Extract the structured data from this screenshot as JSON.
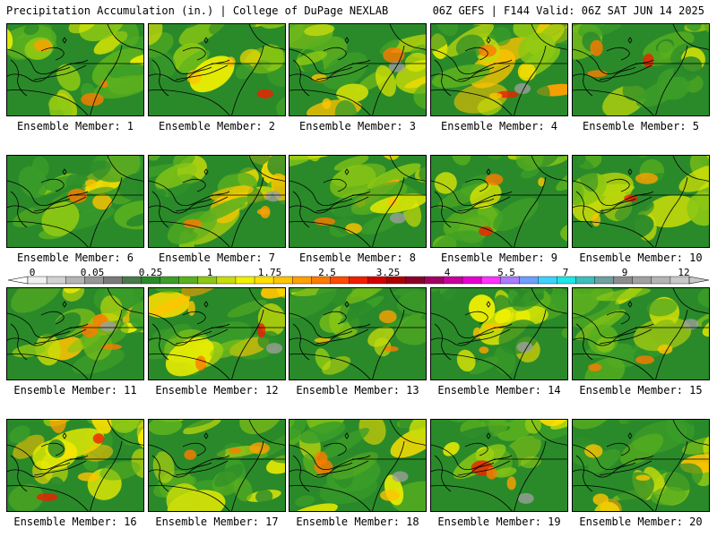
{
  "header": {
    "left": "Precipitation Accumulation (in.) | College of DuPage NEXLAB",
    "right": "06Z GEFS | F144 Valid: 06Z SAT JUN 14 2025"
  },
  "panels": [
    {
      "caption": "Ensemble Member: 1"
    },
    {
      "caption": "Ensemble Member: 2"
    },
    {
      "caption": "Ensemble Member: 3"
    },
    {
      "caption": "Ensemble Member: 4"
    },
    {
      "caption": "Ensemble Member: 5"
    },
    {
      "caption": "Ensemble Member: 6"
    },
    {
      "caption": "Ensemble Member: 7"
    },
    {
      "caption": "Ensemble Member: 8"
    },
    {
      "caption": "Ensemble Member: 9"
    },
    {
      "caption": "Ensemble Member: 10"
    },
    {
      "caption": "Ensemble Member: 11"
    },
    {
      "caption": "Ensemble Member: 12"
    },
    {
      "caption": "Ensemble Member: 13"
    },
    {
      "caption": "Ensemble Member: 14"
    },
    {
      "caption": "Ensemble Member: 15"
    },
    {
      "caption": "Ensemble Member: 16"
    },
    {
      "caption": "Ensemble Member: 17"
    },
    {
      "caption": "Ensemble Member: 18"
    },
    {
      "caption": "Ensemble Member: 19"
    },
    {
      "caption": "Ensemble Member: 20"
    }
  ],
  "colorbar": {
    "labels": [
      "0",
      "0.05",
      "0.25",
      "1",
      "1.75",
      "2.5",
      "3.25",
      "4",
      "5.5",
      "7",
      "9",
      "12"
    ],
    "colors": [
      "#f0f0f0",
      "#d2d2d2",
      "#b4b4b4",
      "#969696",
      "#7a7a7a",
      "#4a7a4a",
      "#2a8a2a",
      "#3c9e28",
      "#5ab01e",
      "#8cc814",
      "#c8dc0a",
      "#f0f000",
      "#ffe000",
      "#ffc400",
      "#ffa000",
      "#ff7a00",
      "#ff4a00",
      "#f01e00",
      "#d20000",
      "#aa0000",
      "#8a0028",
      "#a00064",
      "#c8009a",
      "#e600d2",
      "#ff32ff",
      "#aa7aff",
      "#6e9eff",
      "#3cd2ff",
      "#1ee6e6",
      "#3cbebe",
      "#6ea0a0",
      "#8c8c8c",
      "#a0a0a0",
      "#b4b4b4",
      "#c8c8c8"
    ]
  }
}
